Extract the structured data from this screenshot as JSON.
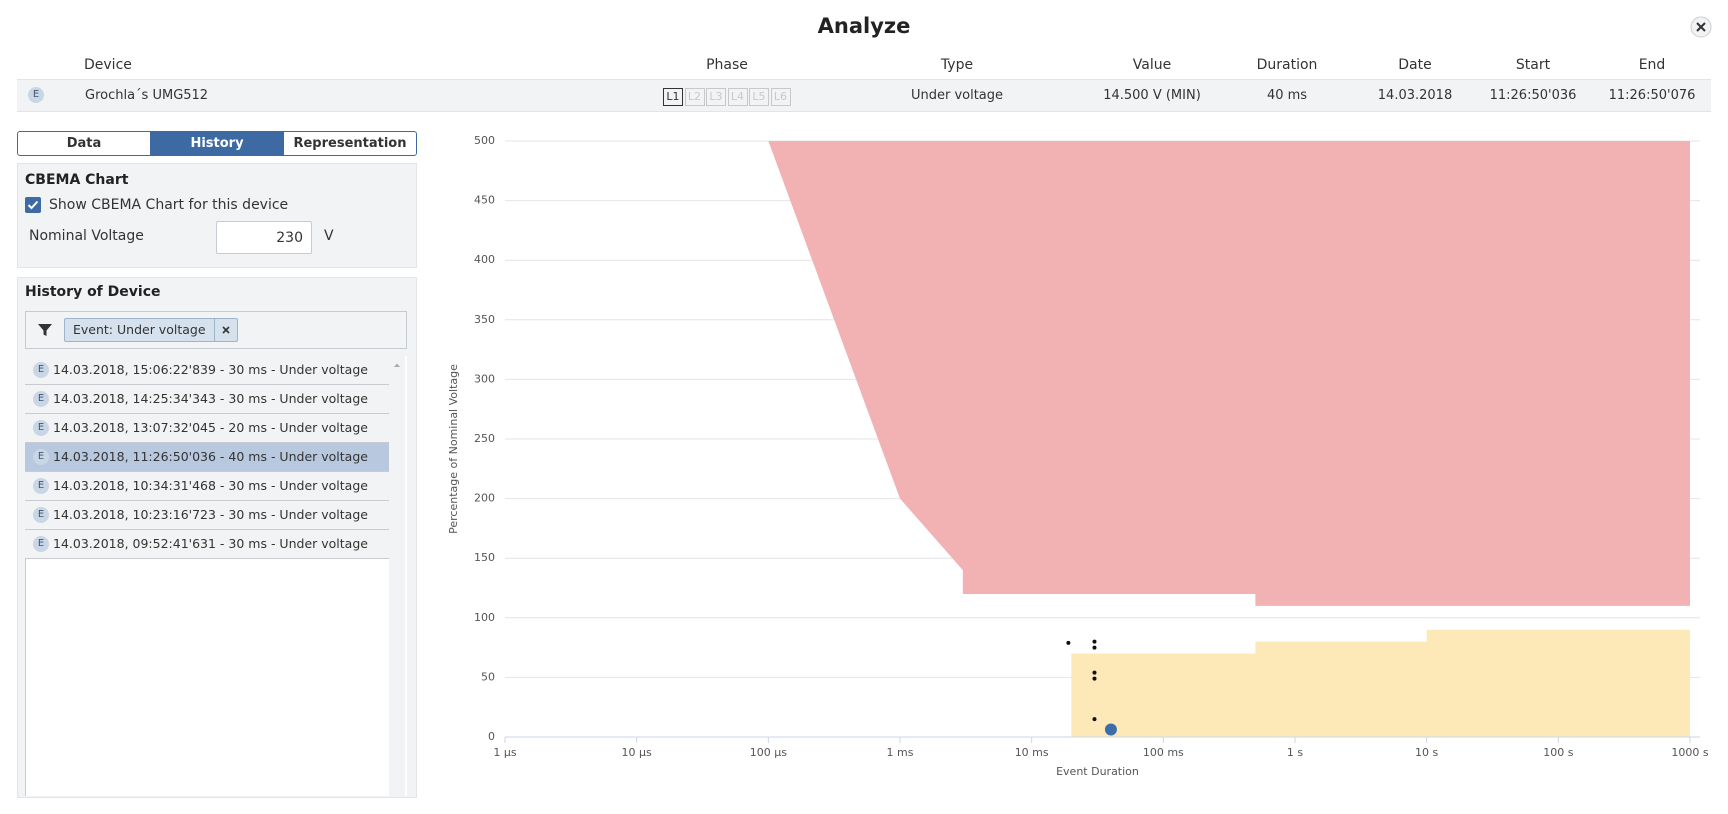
{
  "header": {
    "title": "Analyze"
  },
  "table": {
    "columns": [
      "Device",
      "Phase",
      "Type",
      "Value",
      "Duration",
      "Date",
      "Start",
      "End"
    ],
    "row": {
      "icon": "E",
      "device": "Grochla´s UMG512",
      "phases": [
        "L1",
        "L2",
        "L3",
        "L4",
        "L5",
        "L6"
      ],
      "active_phase": 0,
      "type": "Under voltage",
      "value": "14.500 V (MIN)",
      "duration": "40 ms",
      "date": "14.03.2018",
      "start": "11:26:50'036",
      "end": "11:26:50'076"
    }
  },
  "tabs": {
    "items": [
      "Data",
      "History",
      "Representation"
    ],
    "active": 1
  },
  "cbema": {
    "title": "CBEMA Chart",
    "checkbox_label": "Show CBEMA Chart for this device",
    "checked": true,
    "nominal_label": "Nominal Voltage",
    "nominal_value": "230",
    "unit": "V"
  },
  "history": {
    "title": "History of Device",
    "filter_tag": "Event: Under voltage",
    "selected": 3,
    "items": [
      {
        "icon": "E",
        "text": "14.03.2018, 15:06:22'839 - 30 ms - Under voltage"
      },
      {
        "icon": "E",
        "text": "14.03.2018, 14:25:34'343 - 30 ms - Under voltage"
      },
      {
        "icon": "E",
        "text": "14.03.2018, 13:07:32'045 - 20 ms - Under voltage"
      },
      {
        "icon": "E",
        "text": "14.03.2018, 11:26:50'036 - 40 ms - Under voltage"
      },
      {
        "icon": "E",
        "text": "14.03.2018, 10:34:31'468 - 30 ms - Under voltage"
      },
      {
        "icon": "E",
        "text": "14.03.2018, 10:23:16'723 - 30 ms - Under voltage"
      },
      {
        "icon": "E",
        "text": "14.03.2018, 09:52:41'631 - 30 ms - Under voltage"
      }
    ]
  },
  "chart_data": {
    "type": "scatter",
    "xlabel": "Event Duration",
    "ylabel": "Percentage of Nominal Voltage",
    "xscale": "log",
    "grid": true,
    "xlim": [
      1e-06,
      1000
    ],
    "xticks": [
      {
        "value": 1e-06,
        "label": "1 µs"
      },
      {
        "value": 1e-05,
        "label": "10 µs"
      },
      {
        "value": 0.0001,
        "label": "100 µs"
      },
      {
        "value": 0.001,
        "label": "1 ms"
      },
      {
        "value": 0.01,
        "label": "10 ms"
      },
      {
        "value": 0.1,
        "label": "100 ms"
      },
      {
        "value": 1,
        "label": "1 s"
      },
      {
        "value": 10,
        "label": "10 s"
      },
      {
        "value": 100,
        "label": "100 s"
      },
      {
        "value": 1000,
        "label": "1000 s"
      }
    ],
    "ylim": [
      0,
      500
    ],
    "yticks": [
      0,
      50,
      100,
      150,
      200,
      250,
      300,
      350,
      400,
      450,
      500
    ],
    "areas": [
      {
        "color": "#f2b1b3",
        "fill": "above",
        "x": [
          0.0001,
          0.001,
          0.003,
          0.003,
          0.5,
          0.5,
          1000
        ],
        "values": [
          500,
          200,
          140,
          120,
          120,
          110,
          110
        ]
      },
      {
        "color": "#fde9b7",
        "fill": "below",
        "x": [
          0.02,
          0.02,
          0.5,
          0.5,
          10,
          10,
          1000
        ],
        "values": [
          0,
          70,
          70,
          80,
          80,
          90,
          90
        ]
      }
    ],
    "series": [
      {
        "color": "#111111",
        "size": 2,
        "x": [
          0.019,
          0.03,
          0.03,
          0.03,
          0.03,
          0.03
        ],
        "values": [
          79,
          80,
          75,
          54,
          49,
          15
        ]
      },
      {
        "color": "#3b6ea8",
        "size": 6,
        "x": [
          0.04
        ],
        "values": [
          6.3
        ]
      }
    ]
  }
}
